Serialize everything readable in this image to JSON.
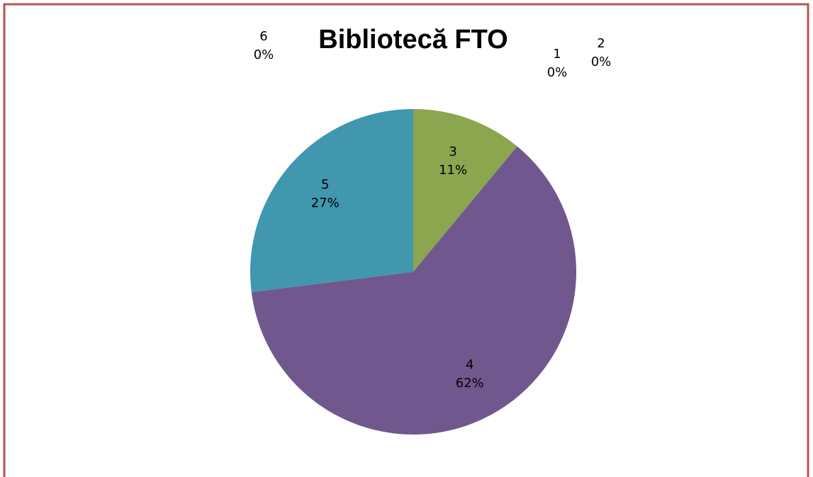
{
  "chart_data": {
    "type": "pie",
    "title": "Bibliotecă FTO",
    "categories": [
      "1",
      "2",
      "3",
      "4",
      "5",
      "6"
    ],
    "values": [
      0,
      0,
      11,
      62,
      27,
      0
    ],
    "value_labels": [
      "0%",
      "0%",
      "11%",
      "62%",
      "27%",
      "0%"
    ],
    "colors": [
      "#4f81bd",
      "#c0504d",
      "#8ba64f",
      "#70588e",
      "#4197ae",
      "#f79646"
    ]
  }
}
